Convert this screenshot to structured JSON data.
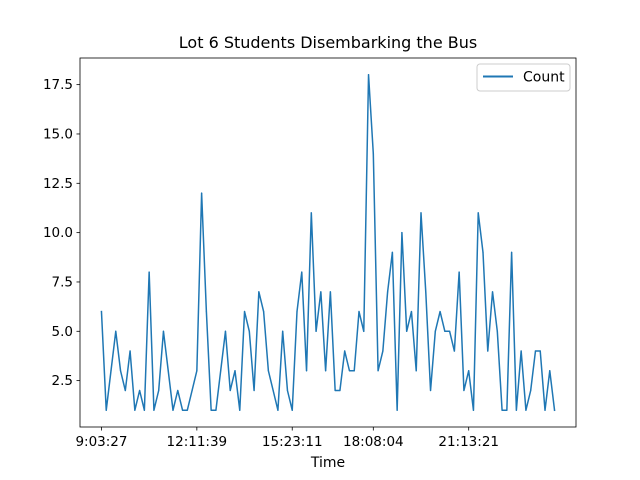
{
  "chart_data": {
    "type": "line",
    "title": "Lot 6 Students Disembarking the Bus",
    "xlabel": "Time",
    "ylabel": "",
    "x_tick_labels": [
      "9:03:27",
      "12:11:39",
      "15:23:11",
      "18:08:04",
      "21:13:21"
    ],
    "x_tick_indices": [
      0,
      20,
      40,
      57,
      77
    ],
    "y_ticks": [
      2.5,
      5.0,
      7.5,
      10.0,
      12.5,
      15.0,
      17.5
    ],
    "y_tick_labels": [
      "2.5",
      "5.0",
      "7.5",
      "10.0",
      "12.5",
      "15.0",
      "17.5"
    ],
    "xlim": [
      -4.5,
      99.5
    ],
    "ylim": [
      0.15,
      18.85
    ],
    "grid": false,
    "legend_position": "top-right",
    "series": [
      {
        "name": "Count",
        "color": "#1f77b4",
        "values": [
          6,
          1,
          3,
          5,
          3,
          2,
          4,
          1,
          2,
          1,
          8,
          1,
          2,
          5,
          3,
          1,
          2,
          1,
          1,
          2,
          3,
          12,
          6,
          1,
          1,
          3,
          5,
          2,
          3,
          1,
          6,
          5,
          2,
          7,
          6,
          3,
          2,
          1,
          5,
          2,
          1,
          6,
          8,
          3,
          11,
          5,
          7,
          3,
          7,
          2,
          2,
          4,
          3,
          3,
          6,
          5,
          18,
          14,
          3,
          4,
          7,
          9,
          1,
          10,
          5,
          6,
          3,
          11,
          7,
          2,
          5,
          6,
          5,
          5,
          4,
          8,
          2,
          3,
          1,
          11,
          9,
          4,
          7,
          5,
          1,
          1,
          9,
          1,
          4,
          1,
          2,
          4,
          4,
          1,
          3,
          1
        ]
      }
    ]
  }
}
